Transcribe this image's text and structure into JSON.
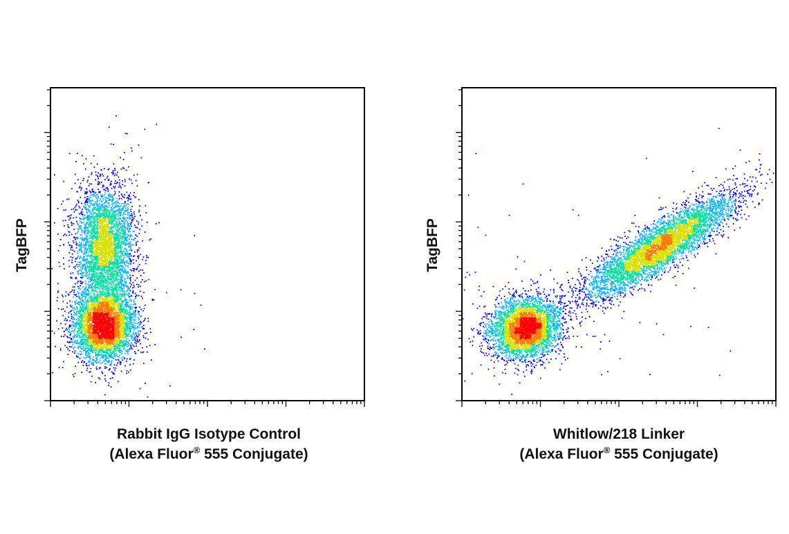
{
  "chart_data": [
    {
      "type": "scatter",
      "title": "",
      "xlabel_line1": "Rabbit IgG Isotype Control",
      "xlabel_line2": "(Alexa Fluor",
      "xlabel_sup": "®",
      "xlabel_line2_end": " 555 Conjugate)",
      "ylabel": "TagBFP",
      "xscale": "log",
      "yscale": "log",
      "xlim": [
        0,
        4
      ],
      "ylim": [
        0,
        3.5
      ],
      "grid": false,
      "colormap": [
        "#0000ff",
        "#00b4ff",
        "#00e0a0",
        "#d8e000",
        "#ff7a00",
        "#ff0000"
      ],
      "populations": [
        {
          "name": "",
          "cx": 0.68,
          "cy": 0.85,
          "sx": 0.2,
          "sy": 0.2,
          "rho": 0.0,
          "n": 4200
        },
        {
          "name": "",
          "cx": 0.68,
          "cy": 1.75,
          "sx": 0.19,
          "sy": 0.34,
          "rho": 0.0,
          "n": 3600
        }
      ]
    },
    {
      "type": "scatter",
      "title": "",
      "xlabel_line1": "Whitlow/218 Linker",
      "xlabel_line2": "(Alexa Fluor",
      "xlabel_sup": "®",
      "xlabel_line2_end": " 555 Conjugate)",
      "ylabel": "TagBFP",
      "xscale": "log",
      "yscale": "log",
      "xlim": [
        0,
        4
      ],
      "ylim": [
        0,
        3.5
      ],
      "grid": false,
      "colormap": [
        "#0000ff",
        "#00b4ff",
        "#00e0a0",
        "#d8e000",
        "#ff7a00",
        "#ff0000"
      ],
      "populations": [
        {
          "name": "",
          "cx": 0.8,
          "cy": 0.82,
          "sx": 0.22,
          "sy": 0.17,
          "rho": 0.1,
          "n": 3800
        },
        {
          "name": "",
          "cx": 2.5,
          "cy": 1.72,
          "sx": 0.5,
          "sy": 0.3,
          "rho": 0.88,
          "n": 4800
        }
      ]
    }
  ]
}
